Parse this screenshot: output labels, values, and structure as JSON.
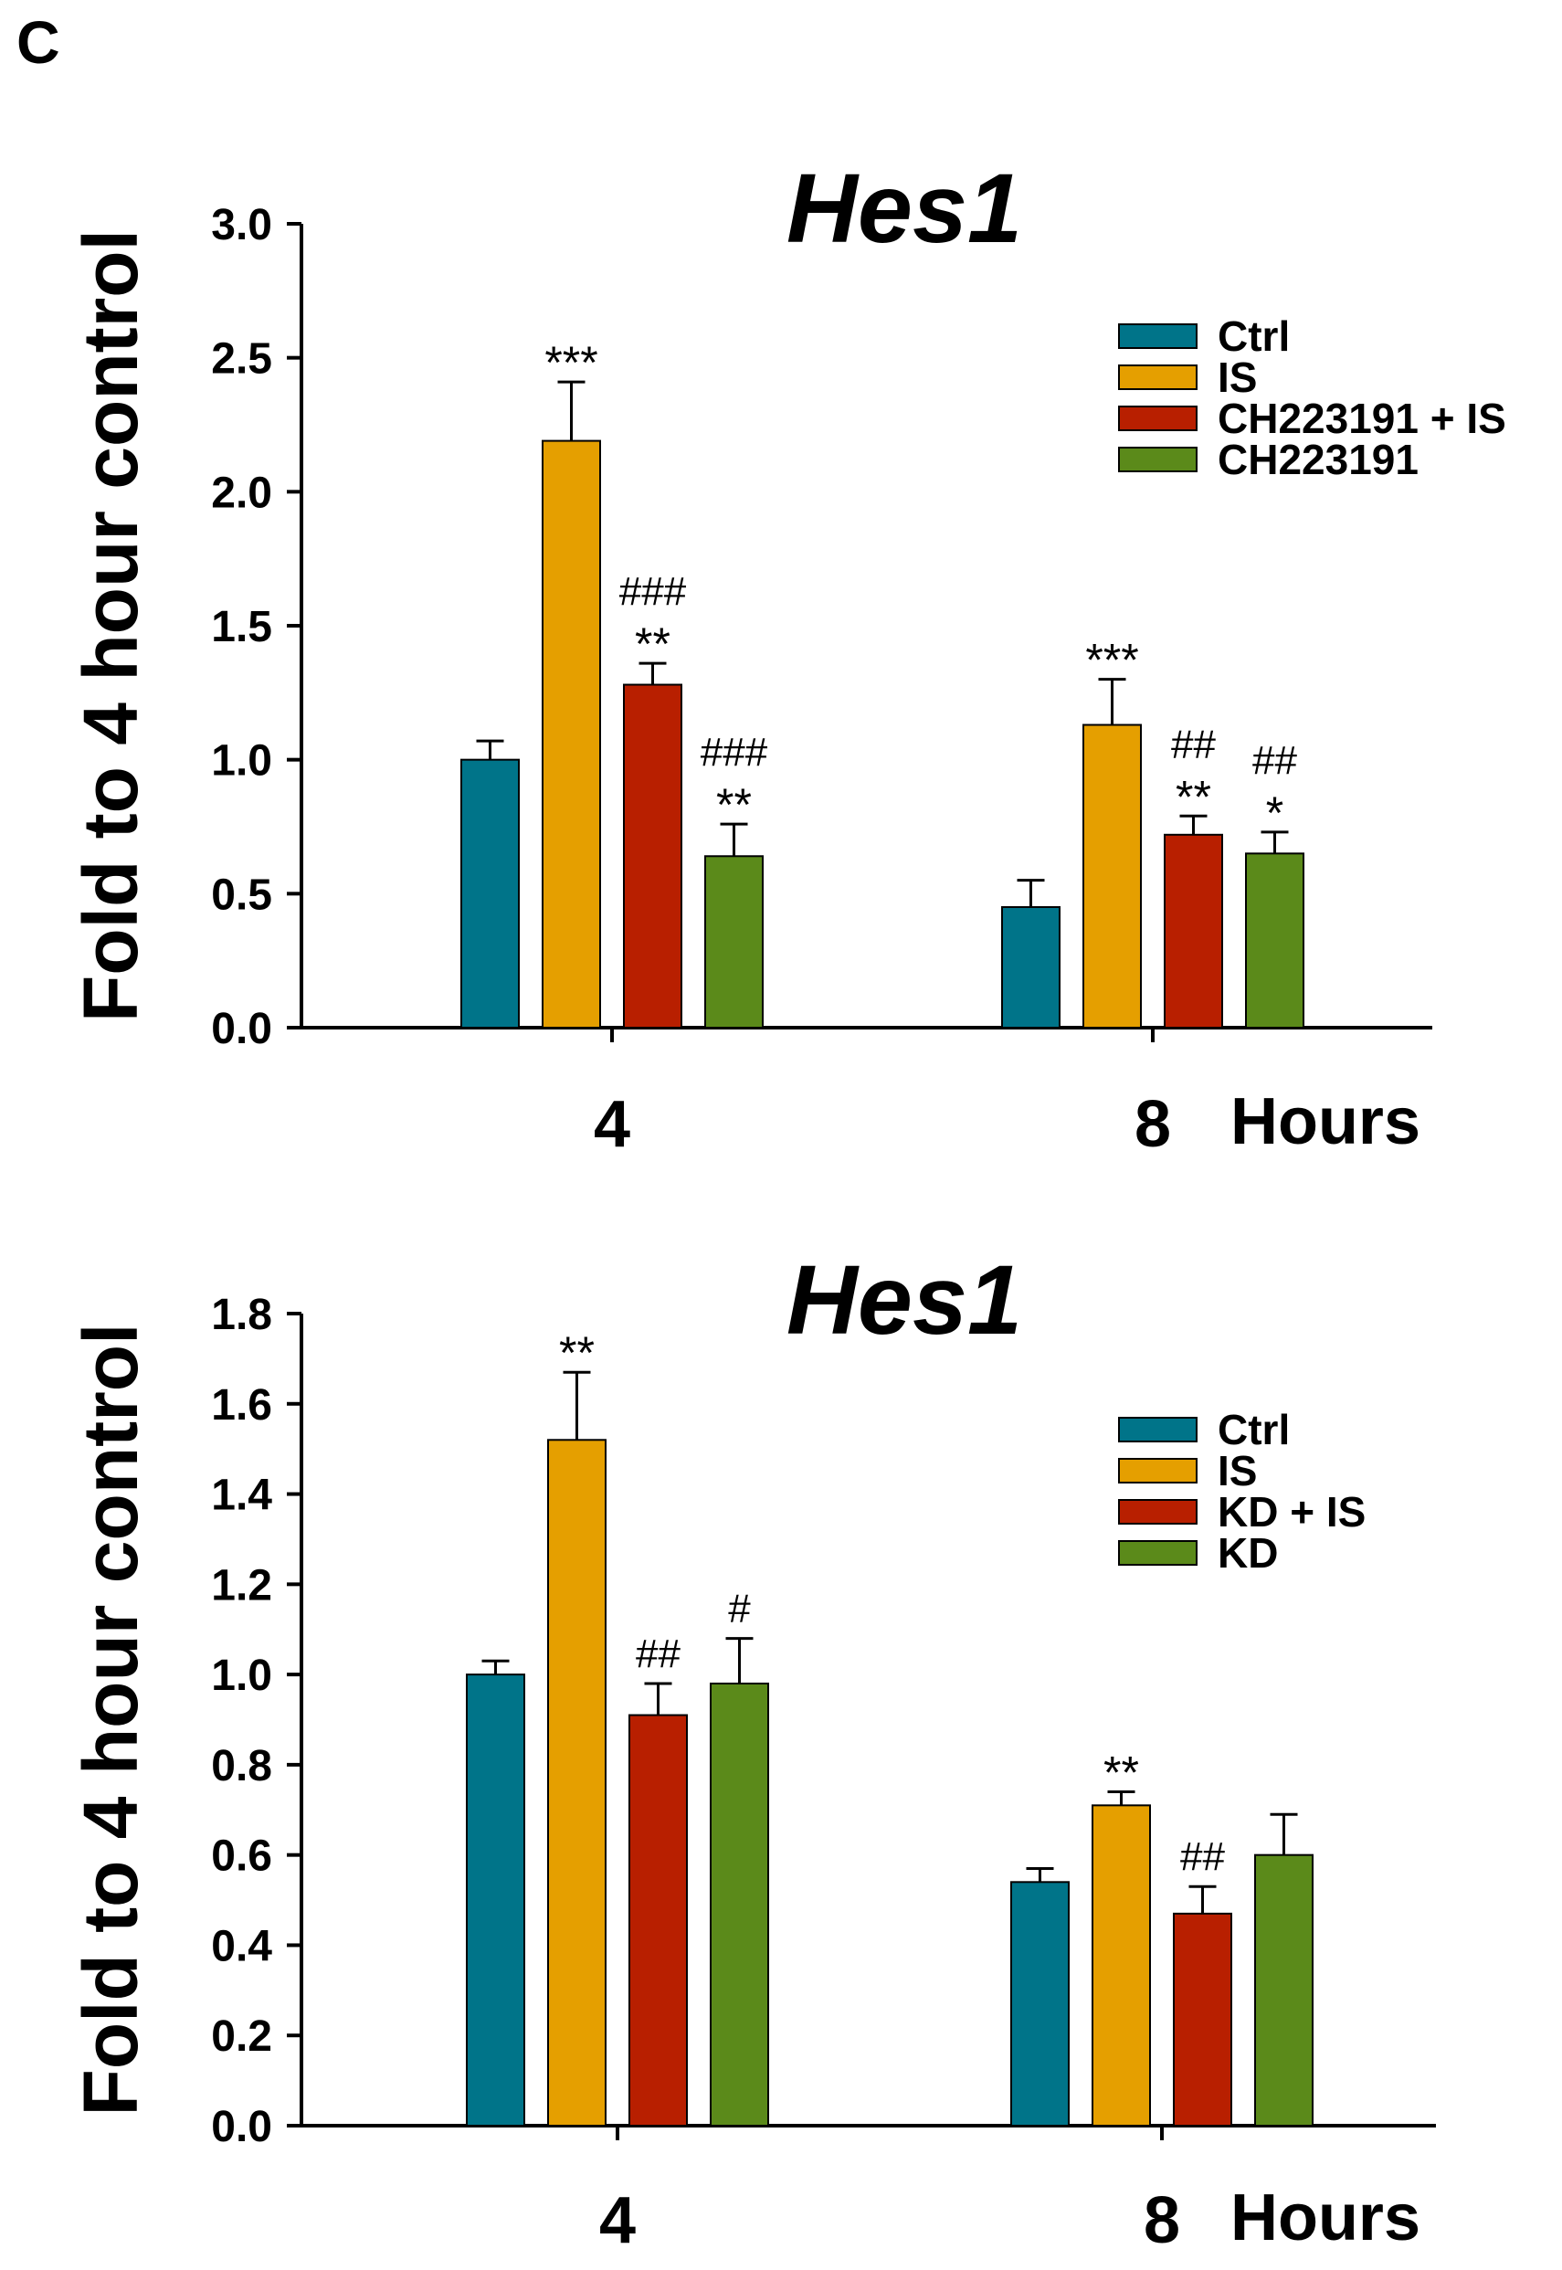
{
  "panel_label": "C",
  "colors": {
    "Ctrl": "#007489",
    "IS": "#e59f00",
    "Treat+IS": "#b81f00",
    "Treat": "#5b8a1a",
    "axis": "#000000"
  },
  "chart_data": [
    {
      "type": "bar",
      "title": "Hes1",
      "ylabel": "Fold to 4 hour control",
      "xlabel": "Hours",
      "categories": [
        "4",
        "8"
      ],
      "ylim": [
        0,
        3.0
      ],
      "yticks": [
        "0.0",
        "0.5",
        "1.0",
        "1.5",
        "2.0",
        "2.5",
        "3.0"
      ],
      "legend_position": "top-right",
      "series": [
        {
          "name": "Ctrl",
          "color_key": "Ctrl",
          "values": [
            1.0,
            0.45
          ],
          "errors": [
            0.07,
            0.1
          ],
          "annotations": [
            "",
            ""
          ]
        },
        {
          "name": "IS",
          "color_key": "IS",
          "values": [
            2.19,
            1.13
          ],
          "errors": [
            0.22,
            0.17
          ],
          "annotations": [
            "***",
            "***"
          ]
        },
        {
          "name": "CH223191 + IS",
          "color_key": "Treat+IS",
          "values": [
            1.28,
            0.72
          ],
          "errors": [
            0.08,
            0.07
          ],
          "annotations": [
            "###\n**",
            "##\n**"
          ]
        },
        {
          "name": "CH223191",
          "color_key": "Treat",
          "values": [
            0.64,
            0.65
          ],
          "errors": [
            0.12,
            0.08
          ],
          "annotations": [
            "###\n**",
            "##\n*"
          ]
        }
      ]
    },
    {
      "type": "bar",
      "title": "Hes1",
      "ylabel": "Fold to 4 hour control",
      "xlabel": "Hours",
      "categories": [
        "4",
        "8"
      ],
      "ylim": [
        0,
        1.8
      ],
      "yticks": [
        "0.0",
        "0.2",
        "0.4",
        "0.6",
        "0.8",
        "1.0",
        "1.2",
        "1.4",
        "1.6",
        "1.8"
      ],
      "legend_position": "top-right",
      "series": [
        {
          "name": "Ctrl",
          "color_key": "Ctrl",
          "values": [
            1.0,
            0.54
          ],
          "errors": [
            0.03,
            0.03
          ],
          "annotations": [
            "",
            ""
          ]
        },
        {
          "name": "IS",
          "color_key": "IS",
          "values": [
            1.52,
            0.71
          ],
          "errors": [
            0.15,
            0.03
          ],
          "annotations": [
            "**",
            "**"
          ]
        },
        {
          "name": "KD + IS",
          "color_key": "Treat+IS",
          "values": [
            0.91,
            0.47
          ],
          "errors": [
            0.07,
            0.06
          ],
          "annotations": [
            "##",
            "##"
          ]
        },
        {
          "name": "KD",
          "color_key": "Treat",
          "values": [
            0.98,
            0.6
          ],
          "errors": [
            0.1,
            0.09
          ],
          "annotations": [
            "#",
            ""
          ]
        }
      ]
    }
  ]
}
